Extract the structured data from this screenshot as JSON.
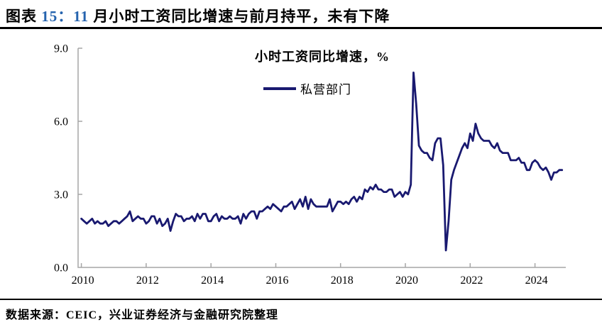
{
  "colors": {
    "accent": "#2563ae",
    "line": "#191970",
    "axis": "#a6a6a6",
    "rule": "#000000"
  },
  "header": {
    "prefix": "图表 ",
    "figure_number": "15：",
    "highlight_number": "11",
    "title_rest": " 月小时工资同比增速与前月持平，未有下降"
  },
  "footer": {
    "source": "数据来源：CEIC，兴业证券经济与金融研究院整理"
  },
  "chart_data": {
    "type": "line",
    "title": "小时工资同比增速，%",
    "legend_position": "top-center",
    "grid": false,
    "axis_color": "#a6a6a6",
    "xlim": [
      2009.9,
      2024.95
    ],
    "ylim": [
      0,
      9
    ],
    "y_ticks": [
      {
        "value": 0,
        "label": "0.0"
      },
      {
        "value": 3,
        "label": "3.0"
      },
      {
        "value": 6,
        "label": "6.0"
      },
      {
        "value": 9,
        "label": "9.0"
      }
    ],
    "x_ticks": [
      {
        "value": 2010,
        "label": "2010"
      },
      {
        "value": 2012,
        "label": "2012"
      },
      {
        "value": 2014,
        "label": "2014"
      },
      {
        "value": 2016,
        "label": "2016"
      },
      {
        "value": 2018,
        "label": "2018"
      },
      {
        "value": 2020,
        "label": "2020"
      },
      {
        "value": 2022,
        "label": "2022"
      },
      {
        "value": 2024,
        "label": "2024"
      }
    ],
    "start_year": 2010,
    "start_month": 1,
    "frequency": "monthly",
    "end_label": "2024-11",
    "series": [
      {
        "name": "私营部门",
        "color": "#191970",
        "values": [
          2.0,
          1.9,
          1.8,
          1.9,
          2.0,
          1.8,
          1.9,
          1.8,
          1.8,
          1.9,
          1.7,
          1.8,
          1.9,
          1.9,
          1.8,
          1.9,
          2.0,
          2.1,
          2.3,
          1.9,
          2.0,
          2.1,
          2.0,
          2.0,
          1.8,
          1.9,
          2.1,
          2.1,
          1.8,
          2.0,
          1.7,
          1.8,
          2.0,
          1.5,
          1.9,
          2.2,
          2.1,
          2.1,
          1.9,
          2.0,
          2.0,
          2.1,
          1.9,
          2.2,
          2.0,
          2.2,
          2.2,
          1.9,
          1.9,
          2.1,
          2.2,
          1.9,
          2.1,
          2.0,
          2.0,
          2.1,
          2.0,
          2.0,
          2.1,
          1.8,
          2.2,
          2.0,
          2.2,
          2.3,
          2.3,
          2.0,
          2.3,
          2.3,
          2.4,
          2.5,
          2.4,
          2.6,
          2.5,
          2.4,
          2.3,
          2.5,
          2.5,
          2.6,
          2.7,
          2.4,
          2.6,
          2.8,
          2.5,
          2.9,
          2.4,
          2.8,
          2.6,
          2.5,
          2.5,
          2.5,
          2.5,
          2.5,
          2.8,
          2.3,
          2.5,
          2.7,
          2.7,
          2.6,
          2.7,
          2.6,
          2.8,
          2.9,
          2.7,
          2.9,
          2.8,
          3.2,
          3.1,
          3.3,
          3.2,
          3.4,
          3.2,
          3.2,
          3.1,
          3.1,
          3.2,
          3.2,
          2.9,
          3.0,
          3.1,
          2.9,
          3.1,
          3.0,
          3.4,
          8.0,
          6.7,
          5.0,
          4.8,
          4.7,
          4.7,
          4.5,
          4.4,
          5.1,
          5.3,
          5.3,
          4.2,
          0.7,
          1.9,
          3.6,
          4.0,
          4.3,
          4.6,
          4.9,
          5.1,
          4.9,
          5.5,
          5.2,
          5.9,
          5.5,
          5.3,
          5.2,
          5.2,
          5.2,
          5.0,
          4.9,
          5.1,
          4.8,
          4.7,
          4.7,
          4.7,
          4.4,
          4.4,
          4.4,
          4.5,
          4.3,
          4.3,
          4.0,
          4.0,
          4.3,
          4.4,
          4.3,
          4.1,
          4.0,
          4.1,
          3.9,
          3.6,
          3.9,
          3.9,
          4.0,
          4.0
        ]
      }
    ]
  }
}
